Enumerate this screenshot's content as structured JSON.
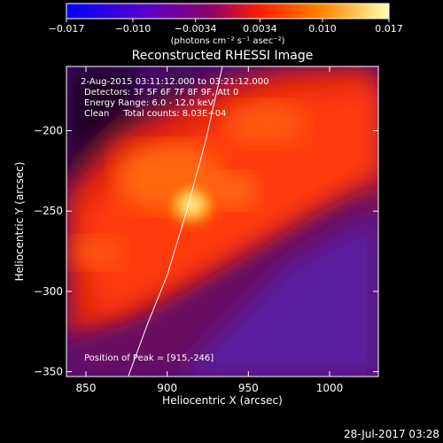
{
  "chart_data": {
    "type": "heatmap",
    "title": "Reconstructed RHESSI Image",
    "xlabel": "Heliocentric X (arcsec)",
    "ylabel": "Heliocentric Y (arcsec)",
    "xlim": [
      838,
      1030
    ],
    "ylim": [
      -353,
      -160
    ],
    "x_ticks": [
      850,
      900,
      950,
      1000
    ],
    "y_ticks": [
      -200,
      -250,
      -300,
      -350
    ],
    "colorbar": {
      "range": [
        -0.017,
        0.017
      ],
      "tick_values": [
        -0.017,
        -0.01,
        -0.0034,
        0.0034,
        0.01,
        0.017
      ],
      "tick_labels": [
        "−0.017",
        "−0.010",
        "−0.0034",
        "0.0034",
        "0.010",
        "0.017"
      ],
      "units_label": "(photons cm⁻² s⁻¹ asec⁻²)",
      "colors": [
        "#0000ff",
        "#6a00c0",
        "#a0005a",
        "#ff2000",
        "#ff9000",
        "#ffffa0"
      ]
    },
    "annotations": [
      " 2-Aug-2015 03:11:12.000 to 03:21:12.000",
      "Detectors: 3F 5F 6F 7F 8F 9F, Att 0",
      "Energy Range: 6.0 - 12.0 keV",
      "Clean     Total counts: 8.03E+04"
    ],
    "peak_label": "Position of Peak = [915,-246]",
    "peak": [
      915,
      -246
    ],
    "limb_curve": [
      [
        876,
        -353
      ],
      [
        888,
        -320
      ],
      [
        900,
        -290
      ],
      [
        912,
        -250
      ],
      [
        924,
        -205
      ],
      [
        934,
        -160
      ]
    ],
    "timestamp": "28-Jul-2017 03:28"
  }
}
